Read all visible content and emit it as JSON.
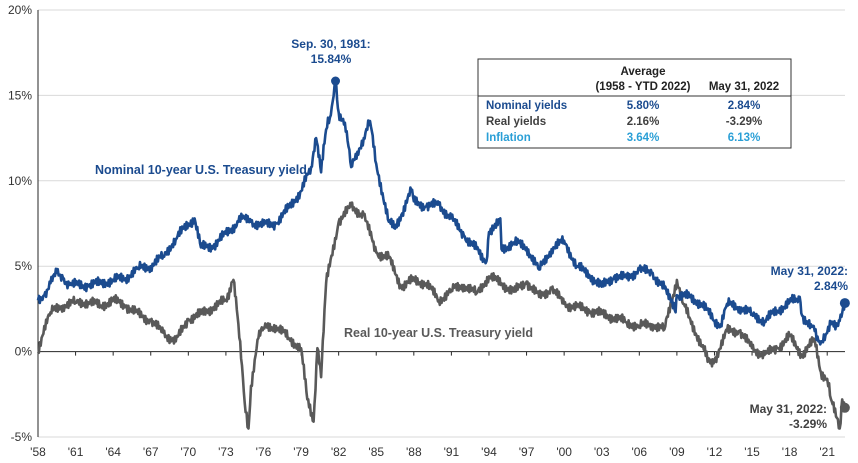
{
  "chart_data": {
    "type": "line",
    "y_unit": "%",
    "ylim": [
      -5,
      20
    ],
    "y_ticks": [
      {
        "value": 20,
        "label": "20%"
      },
      {
        "value": 15,
        "label": "15%"
      },
      {
        "value": 10,
        "label": "10%"
      },
      {
        "value": 5,
        "label": "5%"
      },
      {
        "value": 0,
        "label": "0%"
      },
      {
        "value": -5,
        "label": "-5%"
      }
    ],
    "xlim": [
      1958,
      2022.42
    ],
    "x_ticks": [
      {
        "value": 1958,
        "label": "'58"
      },
      {
        "value": 1961,
        "label": "'61"
      },
      {
        "value": 1964,
        "label": "'64"
      },
      {
        "value": 1967,
        "label": "'67"
      },
      {
        "value": 1970,
        "label": "'70"
      },
      {
        "value": 1973,
        "label": "'73"
      },
      {
        "value": 1976,
        "label": "'76"
      },
      {
        "value": 1979,
        "label": "'79"
      },
      {
        "value": 1982,
        "label": "'82"
      },
      {
        "value": 1985,
        "label": "'85"
      },
      {
        "value": 1988,
        "label": "'88"
      },
      {
        "value": 1991,
        "label": "'91"
      },
      {
        "value": 1994,
        "label": "'94"
      },
      {
        "value": 1997,
        "label": "'97"
      },
      {
        "value": 2000,
        "label": "'00"
      },
      {
        "value": 2003,
        "label": "'03"
      },
      {
        "value": 2006,
        "label": "'06"
      },
      {
        "value": 2009,
        "label": "'09"
      },
      {
        "value": 2012,
        "label": "'12"
      },
      {
        "value": 2015,
        "label": "'15"
      },
      {
        "value": 2018,
        "label": "'18"
      },
      {
        "value": 2021,
        "label": "'21"
      }
    ],
    "series": [
      {
        "name": "Nominal 10-year U.S. Treasury yield",
        "color": "#1b4b8f",
        "x": [
          1958,
          1958.5,
          1959,
          1959.5,
          1960,
          1960.5,
          1961,
          1962,
          1963,
          1964,
          1965,
          1966,
          1967,
          1968,
          1969,
          1970,
          1970.5,
          1971,
          1972,
          1973,
          1974,
          1974.6,
          1975,
          1976,
          1977,
          1978,
          1979,
          1979.8,
          1980.2,
          1980.6,
          1981,
          1981.3,
          1981.75,
          1982,
          1982.5,
          1983,
          1983.5,
          1984,
          1984.5,
          1985,
          1986,
          1986.5,
          1987,
          1987.8,
          1988,
          1989,
          1990,
          1991,
          1992,
          1993,
          1993.8,
          1994,
          1994.9,
          1995,
          1996,
          1997,
          1998,
          1999,
          2000,
          2001,
          2002,
          2003,
          2004,
          2005,
          2006,
          2007,
          2008,
          2008.9,
          2009,
          2010,
          2011,
          2012,
          2012.5,
          2013,
          2014,
          2015,
          2016,
          2017,
          2018,
          2018.8,
          2019,
          2019.7,
          2020,
          2020.3,
          2020.6,
          2021,
          2021.3,
          2021.8,
          2022,
          2022.41
        ],
        "values": [
          3.0,
          3.3,
          4.0,
          4.6,
          4.3,
          3.9,
          3.9,
          3.9,
          4.0,
          4.2,
          4.3,
          4.9,
          5.0,
          5.6,
          6.6,
          7.5,
          7.8,
          6.1,
          6.2,
          6.9,
          7.6,
          8.0,
          7.6,
          7.4,
          7.5,
          8.4,
          9.4,
          10.8,
          12.5,
          10.5,
          13.0,
          13.7,
          15.84,
          14.0,
          13.4,
          10.8,
          11.7,
          12.5,
          13.5,
          11.0,
          7.6,
          7.2,
          8.0,
          9.4,
          8.8,
          8.5,
          8.6,
          7.8,
          6.8,
          6.0,
          5.3,
          7.0,
          7.8,
          6.0,
          6.4,
          6.1,
          4.8,
          6.0,
          6.5,
          5.0,
          4.5,
          3.8,
          4.4,
          4.3,
          4.8,
          4.6,
          3.7,
          2.3,
          3.3,
          3.2,
          2.8,
          1.8,
          1.6,
          2.8,
          2.6,
          2.2,
          1.8,
          2.4,
          2.9,
          3.2,
          2.1,
          1.6,
          1.2,
          0.6,
          0.6,
          1.1,
          1.6,
          1.5,
          1.8,
          2.84
        ]
      },
      {
        "name": "Real 10-year U.S. Treasury yield",
        "color": "#595959",
        "x": [
          1958,
          1958.5,
          1959,
          1960,
          1961,
          1962,
          1963,
          1964,
          1965,
          1966,
          1967,
          1968,
          1969,
          1970,
          1971,
          1972,
          1973,
          1973.6,
          1974,
          1974.5,
          1974.8,
          1975,
          1975.6,
          1976,
          1977,
          1978,
          1979,
          1979.5,
          1980.0,
          1980.3,
          1980.6,
          1981,
          1982,
          1983,
          1984,
          1985,
          1986,
          1987,
          1988,
          1989,
          1990,
          1991,
          1992,
          1993,
          1994,
          1995,
          1996,
          1997,
          1998,
          1999,
          2000,
          2001,
          2002,
          2003,
          2004,
          2005,
          2006,
          2007,
          2008,
          2009,
          2009.5,
          2010,
          2011,
          2011.6,
          2012,
          2013,
          2014,
          2015,
          2016,
          2017,
          2018,
          2019,
          2020,
          2020.5,
          2021,
          2021.3,
          2021.7,
          2022,
          2022.2,
          2022.41
        ],
        "values": [
          0.0,
          1.5,
          2.3,
          2.7,
          2.9,
          2.9,
          2.7,
          3.0,
          2.7,
          2.2,
          1.8,
          1.1,
          0.6,
          1.9,
          2.2,
          2.6,
          3.0,
          4.2,
          1.6,
          -3.0,
          -4.5,
          -2.0,
          0.8,
          1.4,
          1.5,
          0.8,
          0.2,
          -2.8,
          -4.1,
          0.2,
          -1.5,
          4.0,
          7.6,
          8.5,
          8.0,
          5.8,
          5.5,
          3.8,
          4.2,
          4.0,
          3.0,
          3.6,
          3.9,
          3.4,
          4.4,
          4.0,
          3.5,
          4.1,
          3.2,
          3.7,
          2.8,
          2.6,
          2.4,
          2.2,
          2.0,
          1.7,
          1.5,
          1.6,
          1.3,
          4.2,
          2.8,
          2.0,
          0.3,
          -0.5,
          -0.5,
          1.2,
          1.2,
          0.2,
          -0.2,
          0.2,
          0.9,
          -0.2,
          0.7,
          -1.2,
          -1.6,
          -2.8,
          -3.8,
          -4.5,
          -2.8,
          -3.29
        ]
      }
    ],
    "annotations": {
      "peak": {
        "line1": "Sep. 30, 1981:",
        "line2": "15.84%",
        "x": 1981.75,
        "y": 15.84
      },
      "nominal_end": {
        "line1": "May 31, 2022:",
        "line2": "2.84%",
        "x": 2022.41,
        "y": 2.84
      },
      "real_end": {
        "line1": "May 31, 2022:",
        "line2": "-3.29%",
        "x": 2022.41,
        "y": -3.29
      }
    },
    "series_labels": {
      "nominal": "Nominal  10-year U.S. Treasury yield",
      "real": "Real 10-year U.S.  Treasury yield"
    },
    "table": {
      "header_top": "Average",
      "header_col1": "(1958 - YTD 2022)",
      "header_col2": "May 31, 2022",
      "rows": [
        {
          "label": "Nominal yields",
          "avg": "5.80%",
          "latest": "2.84%",
          "color": "#1b4b8f"
        },
        {
          "label": "Real yields",
          "avg": "2.16%",
          "latest": "-3.29%",
          "color": "#404040"
        },
        {
          "label": "Inflation",
          "avg": "3.64%",
          "latest": "6.13%",
          "color": "#2a9fd6"
        }
      ]
    }
  }
}
